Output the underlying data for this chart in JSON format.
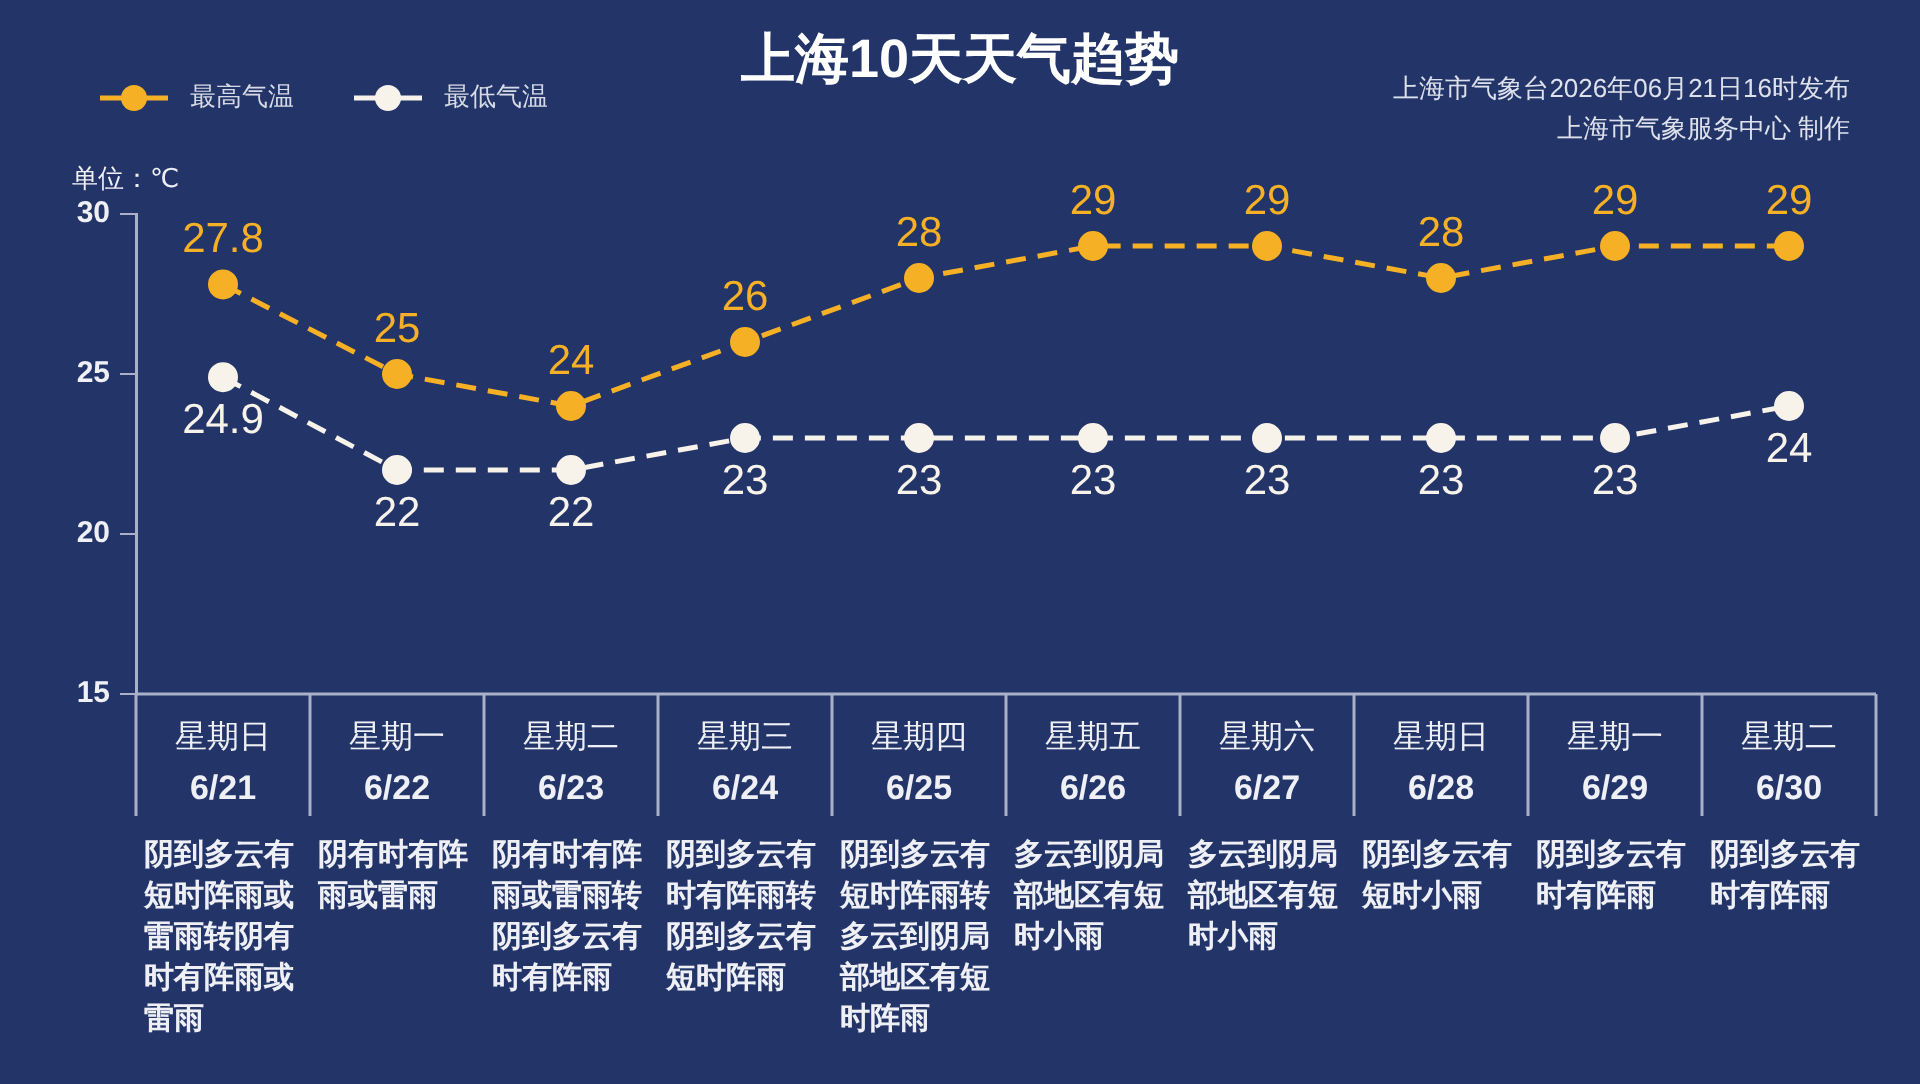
{
  "chart_data": {
    "type": "line",
    "title": "上海10天天气趋势",
    "ylabel": "单位：℃",
    "annotations": [
      "上海市气象台2026年06月21日16时发布",
      "上海市气象服务中心 制作"
    ],
    "categories": [
      "星期日\n6/21\n阴到多云有短时阵雨或雷雨转阴有时有阵雨或雷雨",
      "星期一\n6/22\n阴有时有阵雨或雷雨",
      "星期二\n6/23\n阴有时有阵雨或雷雨转阴到多云有时有阵雨",
      "星期三\n6/24\n阴到多云有时有阵雨转阴到多云有短时阵雨",
      "星期四\n6/25\n阴到多云有短时阵雨转多云到阴局部地区有短时阵雨",
      "星期五\n6/26\n多云到阴局部地区有短时小雨",
      "星期六\n6/27\n多云到阴局部地区有短时小雨",
      "星期日\n6/28\n阴到多云有短时小雨",
      "星期一\n6/29\n阴到多云有时有阵雨",
      "星期二\n6/30\n阴到多云有时有阵雨"
    ],
    "series": [
      {
        "name": "最高气温",
        "color": "#f5b025",
        "values": [
          27.8,
          25,
          24,
          26,
          28,
          29,
          29,
          28,
          29,
          29
        ]
      },
      {
        "name": "最低气温",
        "color": "#f7f3ea",
        "values": [
          24.9,
          22,
          22,
          23,
          23,
          23,
          23,
          23,
          23,
          24
        ]
      }
    ],
    "ylim": [
      15,
      30
    ],
    "yticks": [
      15,
      20,
      25,
      30
    ],
    "data_labels": true,
    "legend": "top left",
    "marker": "circle",
    "line_style": "dashed",
    "grid": false
  }
}
